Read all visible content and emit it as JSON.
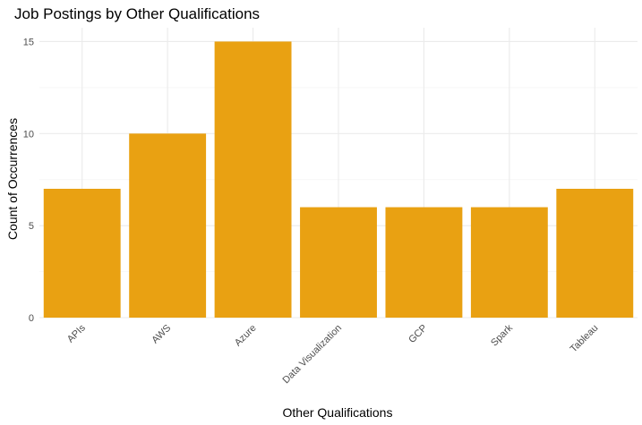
{
  "chart_data": {
    "type": "bar",
    "title": "Job Postings by Other Qualifications",
    "xlabel": "Other Qualifications",
    "ylabel": "Count of Occurrences",
    "categories": [
      "APIs",
      "AWS",
      "Azure",
      "Data Visualization",
      "GCP",
      "Spark",
      "Tableau"
    ],
    "values": [
      7,
      10,
      15,
      6,
      6,
      6,
      7
    ],
    "yticks": [
      0,
      5,
      10,
      15
    ],
    "ytick_labels": [
      "0",
      "5",
      "10",
      "15"
    ],
    "ylim": [
      0,
      15.75
    ],
    "grid": true,
    "bar_color": "#E9A112",
    "grid_color": "#EBEBEB",
    "background": "#FFFFFF"
  }
}
